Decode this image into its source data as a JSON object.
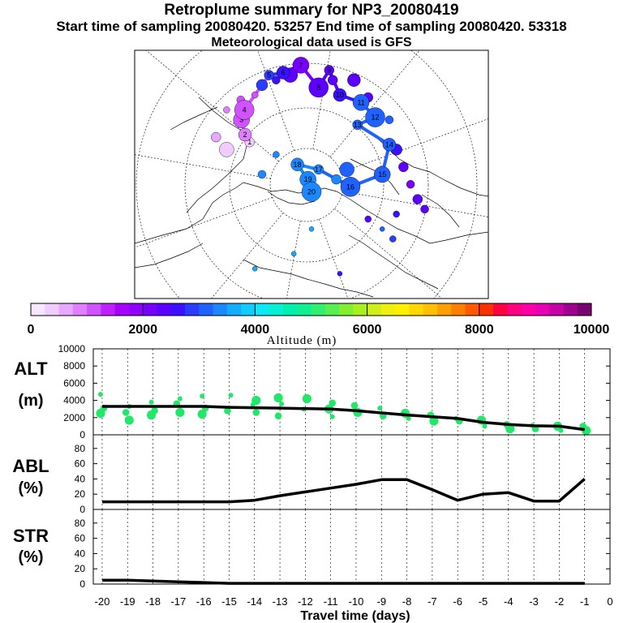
{
  "header": {
    "title": "Retroplume summary for NP3_20080419",
    "sampling_line": "Start time of sampling 20080420. 53257     End time of sampling 20080420. 53318",
    "met_line": "Meteorological data used is GFS"
  },
  "colorbar": {
    "label": "Altitude (m)",
    "tick_labels": [
      "0",
      "2000",
      "4000",
      "6000",
      "8000",
      "10000"
    ],
    "min": 0,
    "max": 10000,
    "colors": [
      "#f6e6ff",
      "#f0ccff",
      "#e9a8ff",
      "#e080ff",
      "#d152ff",
      "#c020ff",
      "#a800ff",
      "#9000ff",
      "#7800ff",
      "#5c00ff",
      "#3a10ff",
      "#2a3cff",
      "#2062ff",
      "#1c88ff",
      "#14acff",
      "#10ccff",
      "#0ce8f8",
      "#08f0d4",
      "#00f0b0",
      "#10f090",
      "#30f070",
      "#58f050",
      "#80f030",
      "#a8f020",
      "#cef018",
      "#eef010",
      "#fff000",
      "#ffd800",
      "#ffc000",
      "#ffa000",
      "#ff8000",
      "#ff5a00",
      "#ff3000",
      "#ff0040",
      "#ff0080",
      "#ff00a8",
      "#e800b4",
      "#c800a8",
      "#a00090",
      "#780070"
    ]
  },
  "map": {
    "trajectory_points": [
      {
        "day": 1,
        "alt": 300
      },
      {
        "day": 2,
        "alt": 900
      },
      {
        "day": 3,
        "alt": 1100
      },
      {
        "day": 4,
        "alt": 1200
      },
      {
        "day": 5,
        "alt": 2900
      },
      {
        "day": 6,
        "alt": 2500
      },
      {
        "day": 7,
        "alt": 2100
      },
      {
        "day": 8,
        "alt": 2400
      },
      {
        "day": 9,
        "alt": 2300
      },
      {
        "day": 10,
        "alt": 2700
      },
      {
        "day": 11,
        "alt": 3000
      },
      {
        "day": 12,
        "alt": 3100
      },
      {
        "day": 13,
        "alt": 3150
      },
      {
        "day": 14,
        "alt": 3100
      },
      {
        "day": 15,
        "alt": 3150
      },
      {
        "day": 16,
        "alt": 3200
      },
      {
        "day": 17,
        "alt": 3300
      },
      {
        "day": 18,
        "alt": 3300
      },
      {
        "day": 19,
        "alt": 3300
      },
      {
        "day": 20,
        "alt": 3300
      }
    ]
  },
  "chart_data": [
    {
      "type": "line",
      "panel": "ALT",
      "ylabel": "ALT",
      "yunit": "(m)",
      "ylim": [
        0,
        10000
      ],
      "yticks": [
        "0",
        "2000",
        "4000",
        "6000",
        "8000",
        "10000"
      ],
      "x": [
        -20,
        -19,
        -18,
        -17,
        -16,
        -15,
        -14,
        -13,
        -12,
        -11,
        -10,
        -9,
        -8,
        -7,
        -6,
        -5,
        -4,
        -3,
        -2,
        -1
      ],
      "values": [
        3300,
        3300,
        3300,
        3300,
        3300,
        3200,
        3150,
        3100,
        3050,
        3000,
        2800,
        2550,
        2300,
        2100,
        1900,
        1450,
        1200,
        1050,
        1000,
        600
      ],
      "scatter_points": [
        {
          "x": -20,
          "y": 4700
        },
        {
          "x": -20,
          "y": 3100
        },
        {
          "x": -20,
          "y": 2500
        },
        {
          "x": -19,
          "y": 3300
        },
        {
          "x": -19,
          "y": 2600
        },
        {
          "x": -19,
          "y": 1700
        },
        {
          "x": -18,
          "y": 3800
        },
        {
          "x": -18,
          "y": 2800
        },
        {
          "x": -18,
          "y": 2300
        },
        {
          "x": -17,
          "y": 4200
        },
        {
          "x": -17,
          "y": 3600
        },
        {
          "x": -17,
          "y": 2600
        },
        {
          "x": -16,
          "y": 4500
        },
        {
          "x": -16,
          "y": 3100
        },
        {
          "x": -16,
          "y": 2400
        },
        {
          "x": -15,
          "y": 4600
        },
        {
          "x": -15,
          "y": 2800
        },
        {
          "x": -14,
          "y": 4000
        },
        {
          "x": -14,
          "y": 3500
        },
        {
          "x": -14,
          "y": 2600
        },
        {
          "x": -13,
          "y": 4300
        },
        {
          "x": -13,
          "y": 3600
        },
        {
          "x": -13,
          "y": 2200
        },
        {
          "x": -12,
          "y": 4200
        },
        {
          "x": -12,
          "y": 3000
        },
        {
          "x": -11,
          "y": 3700
        },
        {
          "x": -11,
          "y": 3000
        },
        {
          "x": -11,
          "y": 2100
        },
        {
          "x": -10,
          "y": 3400
        },
        {
          "x": -10,
          "y": 2600
        },
        {
          "x": -9,
          "y": 3100
        },
        {
          "x": -9,
          "y": 2200
        },
        {
          "x": -8,
          "y": 2500
        },
        {
          "x": -8,
          "y": 1900
        },
        {
          "x": -7,
          "y": 2300
        },
        {
          "x": -7,
          "y": 1600
        },
        {
          "x": -6,
          "y": 1900
        },
        {
          "x": -6,
          "y": 1600
        },
        {
          "x": -5,
          "y": 1700
        },
        {
          "x": -5,
          "y": 1000
        },
        {
          "x": -4,
          "y": 1200
        },
        {
          "x": -4,
          "y": 700
        },
        {
          "x": -3,
          "y": 1100
        },
        {
          "x": -3,
          "y": 700
        },
        {
          "x": -2,
          "y": 1000
        },
        {
          "x": -2,
          "y": 500
        },
        {
          "x": -1,
          "y": 1000
        },
        {
          "x": -1,
          "y": 500
        }
      ]
    },
    {
      "type": "line",
      "panel": "ABL",
      "ylabel": "ABL",
      "yunit": "(%)",
      "ylim": [
        0,
        100
      ],
      "yticks": [
        "0",
        "20",
        "40",
        "60",
        "80"
      ],
      "x": [
        -20,
        -19,
        -18,
        -17,
        -16,
        -15,
        -14,
        -13,
        -12,
        -11,
        -10,
        -9,
        -8,
        -7,
        -6,
        -5,
        -4,
        -3,
        -2,
        -1
      ],
      "values": [
        10,
        10,
        10,
        10,
        10,
        10,
        12,
        18,
        23,
        28,
        33,
        39,
        39,
        26,
        12,
        20,
        22,
        11,
        11,
        40
      ]
    },
    {
      "type": "line",
      "panel": "STR",
      "ylabel": "STR",
      "yunit": "(%)",
      "ylim": [
        0,
        100
      ],
      "yticks": [
        "0",
        "20",
        "40",
        "60",
        "80"
      ],
      "x": [
        -20,
        -19,
        -18,
        -17,
        -16,
        -15,
        -14,
        -13,
        -12,
        -11,
        -10,
        -9,
        -8,
        -7,
        -6,
        -5,
        -4,
        -3,
        -2,
        -1
      ],
      "values": [
        5,
        5,
        4,
        3,
        2,
        1,
        1,
        1,
        1,
        1,
        1,
        1,
        1,
        1,
        1,
        1,
        1,
        1,
        1,
        1
      ]
    }
  ],
  "xaxis": {
    "label": "Travel time (days)",
    "tick_labels": [
      "-20",
      "-19",
      "-18",
      "-17",
      "-16",
      "-15",
      "-14",
      "-13",
      "-12",
      "-11",
      "-10",
      "-9",
      "-8",
      "-7",
      "-6",
      "-5",
      "-4",
      "-3",
      "-2",
      "-1",
      "0"
    ]
  }
}
